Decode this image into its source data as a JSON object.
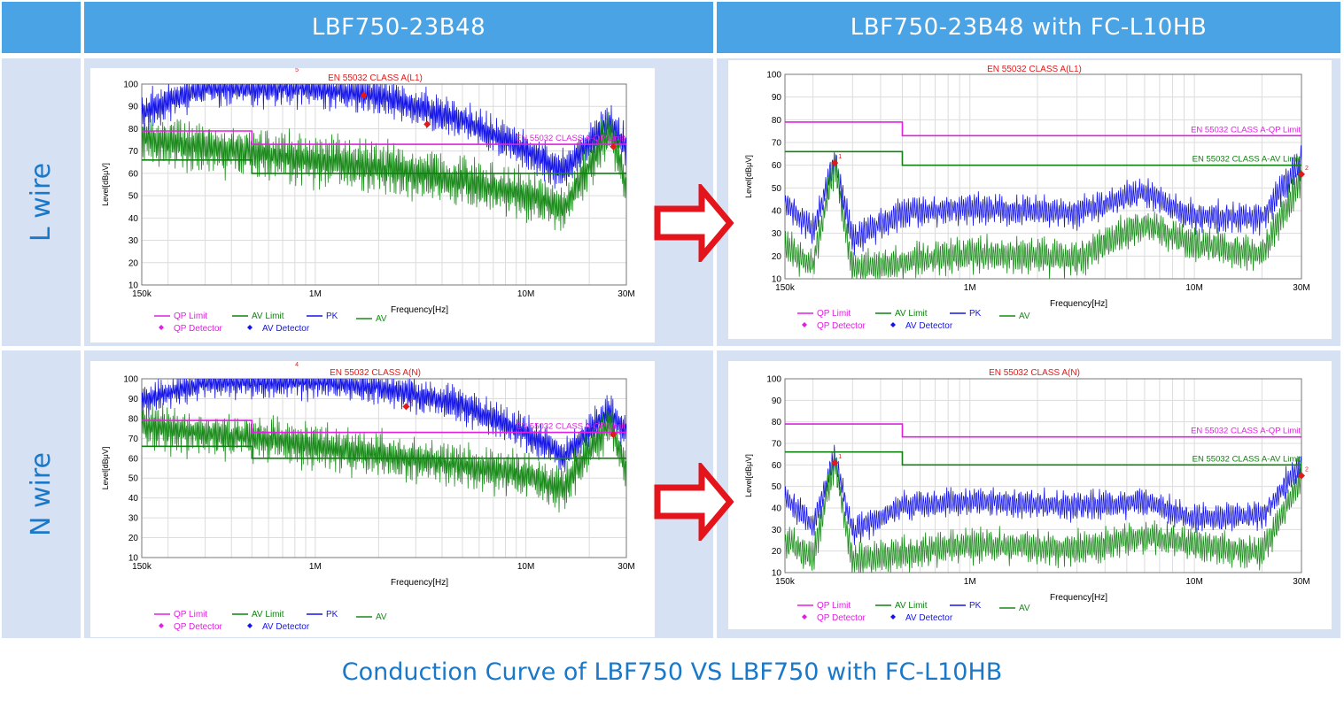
{
  "header": {
    "col1": "LBF750-23B48",
    "col2": "LBF750-23B48 with FC-L10HB"
  },
  "rows": {
    "l_wire": "L wire",
    "n_wire": "N wire"
  },
  "footer": {
    "title": "Conduction Curve of LBF750 VS LBF750 with FC-L10HB"
  },
  "colors": {
    "header_bg": "#4aa3e4",
    "row_bg": "#d7e1f4",
    "accent_text": "#1a78c9",
    "qp_limit": "#e020e0",
    "av_limit": "#108010",
    "pk": "#1515e6",
    "av": "#1a8a1a",
    "detector_red": "#e31919",
    "arrow": "#e3141b"
  },
  "chart_data": [
    {
      "id": "l-before",
      "type": "line",
      "title": "EN 55032 CLASS A(L1)",
      "xlabel": "Frequency[Hz]",
      "ylabel": "Level[dBμV]",
      "x_scale": "log",
      "xlim": [
        150000,
        30000000
      ],
      "ylim": [
        10,
        100
      ],
      "yticks": [
        10,
        20,
        30,
        40,
        50,
        60,
        70,
        80,
        90,
        100
      ],
      "xtick_labels": [
        "150k",
        "1M",
        "10M",
        "30M"
      ],
      "grid": true,
      "qp_limit_label": "EN 55032 CLASS A-QP Limit",
      "av_limit_label": "",
      "series": [
        {
          "name": "QP Limit",
          "x": [
            150000,
            500000,
            500000,
            30000000
          ],
          "y": [
            79,
            79,
            73,
            73
          ]
        },
        {
          "name": "AV Limit",
          "x": [
            150000,
            500000,
            500000,
            30000000
          ],
          "y": [
            66,
            66,
            60,
            60
          ]
        },
        {
          "name": "PK",
          "x": [
            150000,
            300000,
            600000,
            1000000,
            2000000,
            5000000,
            10000000,
            15000000,
            25000000,
            30000000
          ],
          "y": [
            88,
            100,
            100,
            100,
            96,
            85,
            72,
            62,
            84,
            73
          ]
        },
        {
          "name": "AV",
          "x": [
            150000,
            300000,
            600000,
            1000000,
            2000000,
            5000000,
            10000000,
            15000000,
            25000000,
            30000000
          ],
          "y": [
            77,
            73,
            70,
            67,
            64,
            58,
            52,
            46,
            80,
            56
          ]
        }
      ],
      "markers": [
        {
          "label": "5",
          "x": 1700000,
          "y": 95
        },
        {
          "label": "",
          "x": 3400000,
          "y": 82
        },
        {
          "label": "",
          "x": 26000000,
          "y": 72
        }
      ],
      "top_marker_label": "5",
      "legend": [
        "QP Limit",
        "AV Limit",
        "PK",
        "AV",
        "QP Detector",
        "AV Detector"
      ],
      "legend_position": "bottom"
    },
    {
      "id": "l-after",
      "type": "line",
      "title": "EN 55032 CLASS A(L1)",
      "xlabel": "Frequency[Hz]",
      "ylabel": "Level[dBμV]",
      "x_scale": "log",
      "xlim": [
        150000,
        30000000
      ],
      "ylim": [
        10,
        100
      ],
      "yticks": [
        10,
        20,
        30,
        40,
        50,
        60,
        70,
        80,
        90,
        100
      ],
      "xtick_labels": [
        "150k",
        "1M",
        "10M",
        "30M"
      ],
      "grid": true,
      "qp_limit_label": "EN 55032 CLASS A-QP Limit",
      "av_limit_label": "EN 55032 CLASS A-AV Limit",
      "series": [
        {
          "name": "QP Limit",
          "x": [
            150000,
            500000,
            500000,
            30000000
          ],
          "y": [
            79,
            79,
            73,
            73
          ]
        },
        {
          "name": "AV Limit",
          "x": [
            150000,
            500000,
            500000,
            30000000
          ],
          "y": [
            66,
            66,
            60,
            60
          ]
        },
        {
          "name": "PK",
          "x": [
            150000,
            200000,
            250000,
            300000,
            500000,
            1000000,
            3000000,
            6000000,
            10000000,
            20000000,
            30000000
          ],
          "y": [
            45,
            32,
            64,
            28,
            40,
            42,
            40,
            49,
            38,
            38,
            63
          ]
        },
        {
          "name": "AV",
          "x": [
            150000,
            200000,
            250000,
            300000,
            500000,
            1000000,
            3000000,
            6000000,
            10000000,
            20000000,
            30000000
          ],
          "y": [
            25,
            17,
            62,
            15,
            18,
            22,
            20,
            35,
            26,
            22,
            56
          ]
        }
      ],
      "markers": [
        {
          "label": "1",
          "x": 250000,
          "y": 61
        },
        {
          "label": "2",
          "x": 30000000,
          "y": 56
        }
      ],
      "legend": [
        "QP Limit",
        "AV Limit",
        "PK",
        "AV",
        "QP Detector",
        "AV Detector"
      ],
      "legend_position": "bottom"
    },
    {
      "id": "n-before",
      "type": "line",
      "title": "EN 55032 CLASS A(N)",
      "xlabel": "Frequency[Hz]",
      "ylabel": "Level[dBμV]",
      "x_scale": "log",
      "xlim": [
        150000,
        30000000
      ],
      "ylim": [
        10,
        100
      ],
      "yticks": [
        10,
        20,
        30,
        40,
        50,
        60,
        70,
        80,
        90,
        100
      ],
      "xtick_labels": [
        "150k",
        "1M",
        "10M",
        "30M"
      ],
      "grid": true,
      "qp_limit_label": "EN 55032 CLASS A-QP Limit",
      "av_limit_label": "",
      "series": [
        {
          "name": "QP Limit",
          "x": [
            150000,
            500000,
            500000,
            30000000
          ],
          "y": [
            79,
            79,
            73,
            73
          ]
        },
        {
          "name": "AV Limit",
          "x": [
            150000,
            500000,
            500000,
            30000000
          ],
          "y": [
            66,
            66,
            60,
            60
          ]
        },
        {
          "name": "PK",
          "x": [
            150000,
            300000,
            600000,
            1000000,
            2000000,
            5000000,
            10000000,
            15000000,
            25000000,
            30000000
          ],
          "y": [
            90,
            100,
            100,
            100,
            97,
            88,
            74,
            62,
            85,
            74
          ]
        },
        {
          "name": "AV",
          "x": [
            150000,
            300000,
            600000,
            1000000,
            2000000,
            5000000,
            10000000,
            15000000,
            25000000,
            30000000
          ],
          "y": [
            78,
            74,
            71,
            67,
            63,
            58,
            53,
            46,
            80,
            55
          ]
        }
      ],
      "markers": [
        {
          "label": "6",
          "x": 2700000,
          "y": 86
        },
        {
          "label": "",
          "x": 26000000,
          "y": 72
        }
      ],
      "top_marker_label": "4",
      "legend": [
        "QP Limit",
        "AV Limit",
        "PK",
        "AV",
        "QP Detector",
        "AV Detector"
      ],
      "legend_position": "bottom"
    },
    {
      "id": "n-after",
      "type": "line",
      "title": "EN 55032 CLASS A(N)",
      "xlabel": "Frequency[Hz]",
      "ylabel": "Level[dBμV]",
      "x_scale": "log",
      "xlim": [
        150000,
        30000000
      ],
      "ylim": [
        10,
        100
      ],
      "yticks": [
        10,
        20,
        30,
        40,
        50,
        60,
        70,
        80,
        90,
        100
      ],
      "xtick_labels": [
        "150k",
        "1M",
        "10M",
        "30M"
      ],
      "grid": true,
      "qp_limit_label": "EN 55032 CLASS A-QP Limit",
      "av_limit_label": "EN 55032 CLASS A-AV Limit",
      "series": [
        {
          "name": "QP Limit",
          "x": [
            150000,
            500000,
            500000,
            30000000
          ],
          "y": [
            79,
            79,
            73,
            73
          ]
        },
        {
          "name": "AV Limit",
          "x": [
            150000,
            500000,
            500000,
            30000000
          ],
          "y": [
            66,
            66,
            60,
            60
          ]
        },
        {
          "name": "PK",
          "x": [
            150000,
            200000,
            250000,
            300000,
            500000,
            1000000,
            3000000,
            6000000,
            10000000,
            20000000,
            30000000
          ],
          "y": [
            46,
            33,
            65,
            30,
            42,
            44,
            42,
            44,
            36,
            37,
            62
          ]
        },
        {
          "name": "AV",
          "x": [
            150000,
            200000,
            250000,
            300000,
            500000,
            1000000,
            3000000,
            6000000,
            10000000,
            20000000,
            30000000
          ],
          "y": [
            26,
            18,
            63,
            16,
            20,
            24,
            22,
            28,
            24,
            20,
            55
          ]
        }
      ],
      "markers": [
        {
          "label": "1",
          "x": 250000,
          "y": 61
        },
        {
          "label": "2",
          "x": 30000000,
          "y": 55
        }
      ],
      "legend": [
        "QP Limit",
        "AV Limit",
        "PK",
        "AV",
        "QP Detector",
        "AV Detector"
      ],
      "legend_position": "bottom"
    }
  ]
}
